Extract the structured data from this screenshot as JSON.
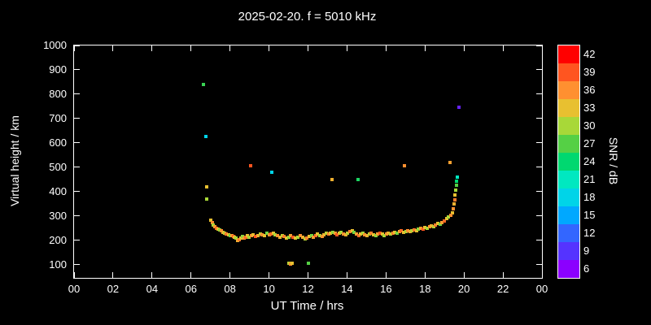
{
  "chart_data": {
    "type": "scatter",
    "title": "2025-02-20. f = 5010 kHz",
    "xlabel": "UT Time / hrs",
    "ylabel": "Virtual height / km",
    "colorbar_label": "SNR / dB",
    "xlim": [
      0,
      24
    ],
    "ylim": [
      46,
      1000
    ],
    "grid": false,
    "x_tick_values": [
      0,
      2,
      4,
      6,
      8,
      10,
      12,
      14,
      16,
      18,
      20,
      22,
      24
    ],
    "x_tick_labels": [
      "00",
      "02",
      "04",
      "06",
      "08",
      "10",
      "12",
      "14",
      "16",
      "18",
      "20",
      "22",
      "00"
    ],
    "y_tick_values": [
      100,
      200,
      300,
      400,
      500,
      600,
      700,
      800,
      900,
      1000
    ],
    "y_tick_labels": [
      "100",
      "200",
      "300",
      "400",
      "500",
      "600",
      "700",
      "800",
      "900",
      "1000"
    ],
    "colorbar": {
      "min": 4.5,
      "max": 43.5,
      "band_width": 3,
      "tick_values": [
        6,
        9,
        12,
        15,
        18,
        21,
        24,
        27,
        30,
        33,
        36,
        39,
        42
      ],
      "tick_labels": [
        "6",
        "9",
        "12",
        "15",
        "18",
        "21",
        "24",
        "27",
        "30",
        "33",
        "36",
        "39",
        "42"
      ]
    },
    "color_stops": [
      [
        6,
        "#8b00ff"
      ],
      [
        9,
        "#5533ff"
      ],
      [
        12,
        "#3366ff"
      ],
      [
        15,
        "#00a8ff"
      ],
      [
        18,
        "#00d4e8"
      ],
      [
        21,
        "#00e8c0"
      ],
      [
        24,
        "#00d870"
      ],
      [
        27,
        "#55d045"
      ],
      [
        30,
        "#a8d838"
      ],
      [
        33,
        "#e8c030"
      ],
      [
        36,
        "#ff9030"
      ],
      [
        39,
        "#ff5520"
      ],
      [
        42,
        "#ff0000"
      ]
    ],
    "points_format": [
      "ut_hours",
      "virtual_height_km",
      "snr_db"
    ],
    "points": [
      [
        6.62,
        840,
        26
      ],
      [
        6.75,
        625,
        18
      ],
      [
        6.8,
        420,
        33
      ],
      [
        6.82,
        368,
        30
      ],
      [
        9.05,
        505,
        39
      ],
      [
        10.15,
        480,
        18
      ],
      [
        13.25,
        450,
        34
      ],
      [
        14.55,
        450,
        25
      ],
      [
        16.95,
        505,
        36
      ],
      [
        19.3,
        520,
        35
      ],
      [
        19.75,
        748,
        8
      ],
      [
        19.42,
        312,
        33
      ],
      [
        19.46,
        330,
        36
      ],
      [
        19.5,
        348,
        34
      ],
      [
        19.52,
        366,
        37
      ],
      [
        19.55,
        385,
        33
      ],
      [
        19.58,
        405,
        30
      ],
      [
        19.6,
        425,
        27
      ],
      [
        19.62,
        442,
        24
      ],
      [
        19.65,
        458,
        21
      ],
      [
        11.0,
        105,
        31
      ],
      [
        11.1,
        104,
        36
      ],
      [
        11.18,
        106,
        33
      ],
      [
        12.02,
        105,
        27
      ],
      [
        7.0,
        284,
        33
      ],
      [
        7.08,
        272,
        36
      ],
      [
        7.15,
        264,
        30
      ],
      [
        7.23,
        257,
        35
      ],
      [
        7.3,
        251,
        38
      ],
      [
        7.38,
        246,
        33
      ],
      [
        7.46,
        242,
        29
      ],
      [
        7.55,
        238,
        36
      ],
      [
        7.64,
        233,
        34
      ],
      [
        7.73,
        230,
        31
      ],
      [
        7.82,
        227,
        37
      ],
      [
        7.91,
        224,
        33
      ],
      [
        8.0,
        221,
        28
      ],
      [
        8.08,
        218,
        35
      ],
      [
        8.16,
        215,
        39
      ],
      [
        8.24,
        212,
        33
      ],
      [
        8.32,
        208,
        30
      ],
      [
        8.4,
        198,
        34
      ],
      [
        8.48,
        204,
        37
      ],
      [
        8.56,
        210,
        33
      ],
      [
        8.64,
        215,
        29
      ],
      [
        8.72,
        208,
        35
      ],
      [
        8.8,
        213,
        38
      ],
      [
        8.88,
        218,
        33
      ],
      [
        8.96,
        214,
        30
      ],
      [
        9.1,
        219,
        36
      ],
      [
        9.2,
        224,
        33
      ],
      [
        9.3,
        217,
        39
      ],
      [
        9.42,
        221,
        34
      ],
      [
        9.54,
        227,
        31
      ],
      [
        9.65,
        224,
        36
      ],
      [
        9.76,
        219,
        33
      ],
      [
        9.88,
        229,
        28
      ],
      [
        10.0,
        224,
        35
      ],
      [
        10.1,
        227,
        38
      ],
      [
        10.22,
        231,
        33
      ],
      [
        10.33,
        224,
        30
      ],
      [
        10.45,
        219,
        36
      ],
      [
        10.56,
        214,
        34
      ],
      [
        10.67,
        221,
        31
      ],
      [
        10.78,
        217,
        37
      ],
      [
        10.89,
        211,
        33
      ],
      [
        11.0,
        214,
        29
      ],
      [
        11.12,
        219,
        35
      ],
      [
        11.24,
        214,
        39
      ],
      [
        11.36,
        209,
        33
      ],
      [
        11.48,
        214,
        30
      ],
      [
        11.6,
        219,
        36
      ],
      [
        11.72,
        214,
        34
      ],
      [
        11.84,
        207,
        31
      ],
      [
        11.95,
        211,
        37
      ],
      [
        12.06,
        215,
        33
      ],
      [
        12.17,
        219,
        28
      ],
      [
        12.28,
        214,
        35
      ],
      [
        12.39,
        221,
        38
      ],
      [
        12.5,
        227,
        33
      ],
      [
        12.61,
        221,
        30
      ],
      [
        12.72,
        217,
        36
      ],
      [
        12.83,
        224,
        34
      ],
      [
        12.94,
        229,
        31
      ],
      [
        13.05,
        227,
        37
      ],
      [
        13.16,
        231,
        33
      ],
      [
        13.27,
        234,
        29
      ],
      [
        13.38,
        229,
        35
      ],
      [
        13.49,
        224,
        39
      ],
      [
        13.6,
        229,
        33
      ],
      [
        13.71,
        234,
        30
      ],
      [
        13.82,
        227,
        36
      ],
      [
        13.93,
        222,
        34
      ],
      [
        14.04,
        229,
        31
      ],
      [
        14.15,
        236,
        37
      ],
      [
        14.26,
        240,
        33
      ],
      [
        14.37,
        233,
        28
      ],
      [
        14.48,
        226,
        35
      ],
      [
        14.59,
        221,
        38
      ],
      [
        14.7,
        227,
        33
      ],
      [
        14.81,
        231,
        30
      ],
      [
        14.92,
        224,
        36
      ],
      [
        15.03,
        218,
        34
      ],
      [
        15.14,
        226,
        31
      ],
      [
        15.25,
        230,
        37
      ],
      [
        15.36,
        224,
        33
      ],
      [
        15.47,
        219,
        29
      ],
      [
        15.58,
        227,
        35
      ],
      [
        15.69,
        231,
        39
      ],
      [
        15.8,
        226,
        33
      ],
      [
        15.91,
        221,
        30
      ],
      [
        16.02,
        227,
        36
      ],
      [
        16.13,
        231,
        34
      ],
      [
        16.24,
        225,
        31
      ],
      [
        16.35,
        229,
        37
      ],
      [
        16.46,
        234,
        33
      ],
      [
        16.57,
        229,
        28
      ],
      [
        16.68,
        237,
        35
      ],
      [
        16.79,
        241,
        38
      ],
      [
        16.9,
        234,
        33
      ],
      [
        17.01,
        237,
        30
      ],
      [
        17.12,
        241,
        36
      ],
      [
        17.23,
        235,
        34
      ],
      [
        17.34,
        240,
        31
      ],
      [
        17.45,
        244,
        37
      ],
      [
        17.56,
        240,
        33
      ],
      [
        17.67,
        247,
        29
      ],
      [
        17.78,
        251,
        35
      ],
      [
        17.89,
        245,
        39
      ],
      [
        18.0,
        252,
        33
      ],
      [
        18.11,
        249,
        30
      ],
      [
        18.22,
        256,
        36
      ],
      [
        18.33,
        261,
        34
      ],
      [
        18.44,
        257,
        31
      ],
      [
        18.55,
        263,
        37
      ],
      [
        18.66,
        268,
        33
      ],
      [
        18.77,
        266,
        28
      ],
      [
        18.88,
        273,
        35
      ],
      [
        18.99,
        280,
        38
      ],
      [
        19.1,
        288,
        33
      ],
      [
        19.2,
        296,
        30
      ],
      [
        19.32,
        304,
        36
      ]
    ]
  }
}
